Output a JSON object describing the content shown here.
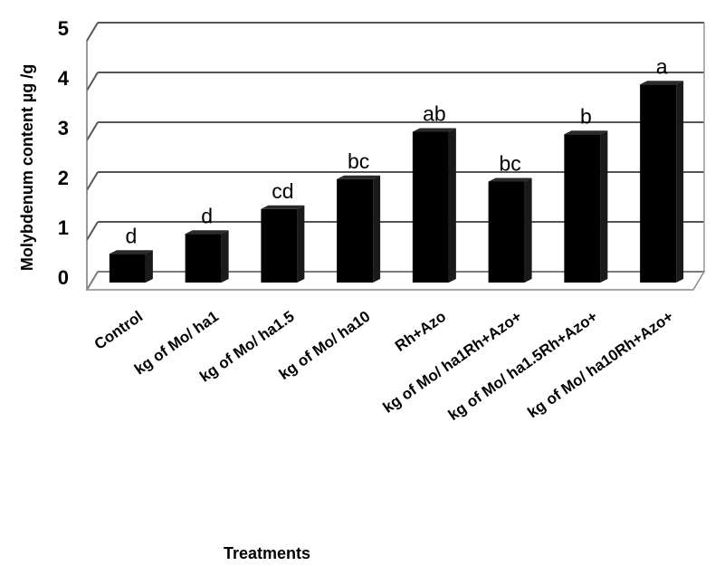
{
  "chart_data": {
    "type": "bar",
    "title": "",
    "xlabel": "Treatments",
    "ylabel": "Molybdenum content µg /g",
    "ylim": [
      0,
      5
    ],
    "yticks": [
      0,
      1,
      2,
      3,
      4,
      5
    ],
    "grid": true,
    "categories": [
      "Control",
      "kg of Mo/ ha1",
      "kg of Mo/ ha1.5",
      "kg of Mo/ ha10",
      "Rh+Azo",
      "kg of Mo/ ha1Rh+Azo+",
      "kg of Mo/ ha1.5Rh+Azo+",
      "kg of Mo/ ha10Rh+Azo+"
    ],
    "series": [
      {
        "values": [
          0.65,
          1.05,
          1.55,
          2.15,
          3.1,
          2.1,
          3.05,
          4.05
        ]
      }
    ],
    "annotations": [
      "d",
      "d",
      "cd",
      "bc",
      "ab",
      "bc",
      "b",
      "a"
    ],
    "bar_color": "#000000"
  }
}
